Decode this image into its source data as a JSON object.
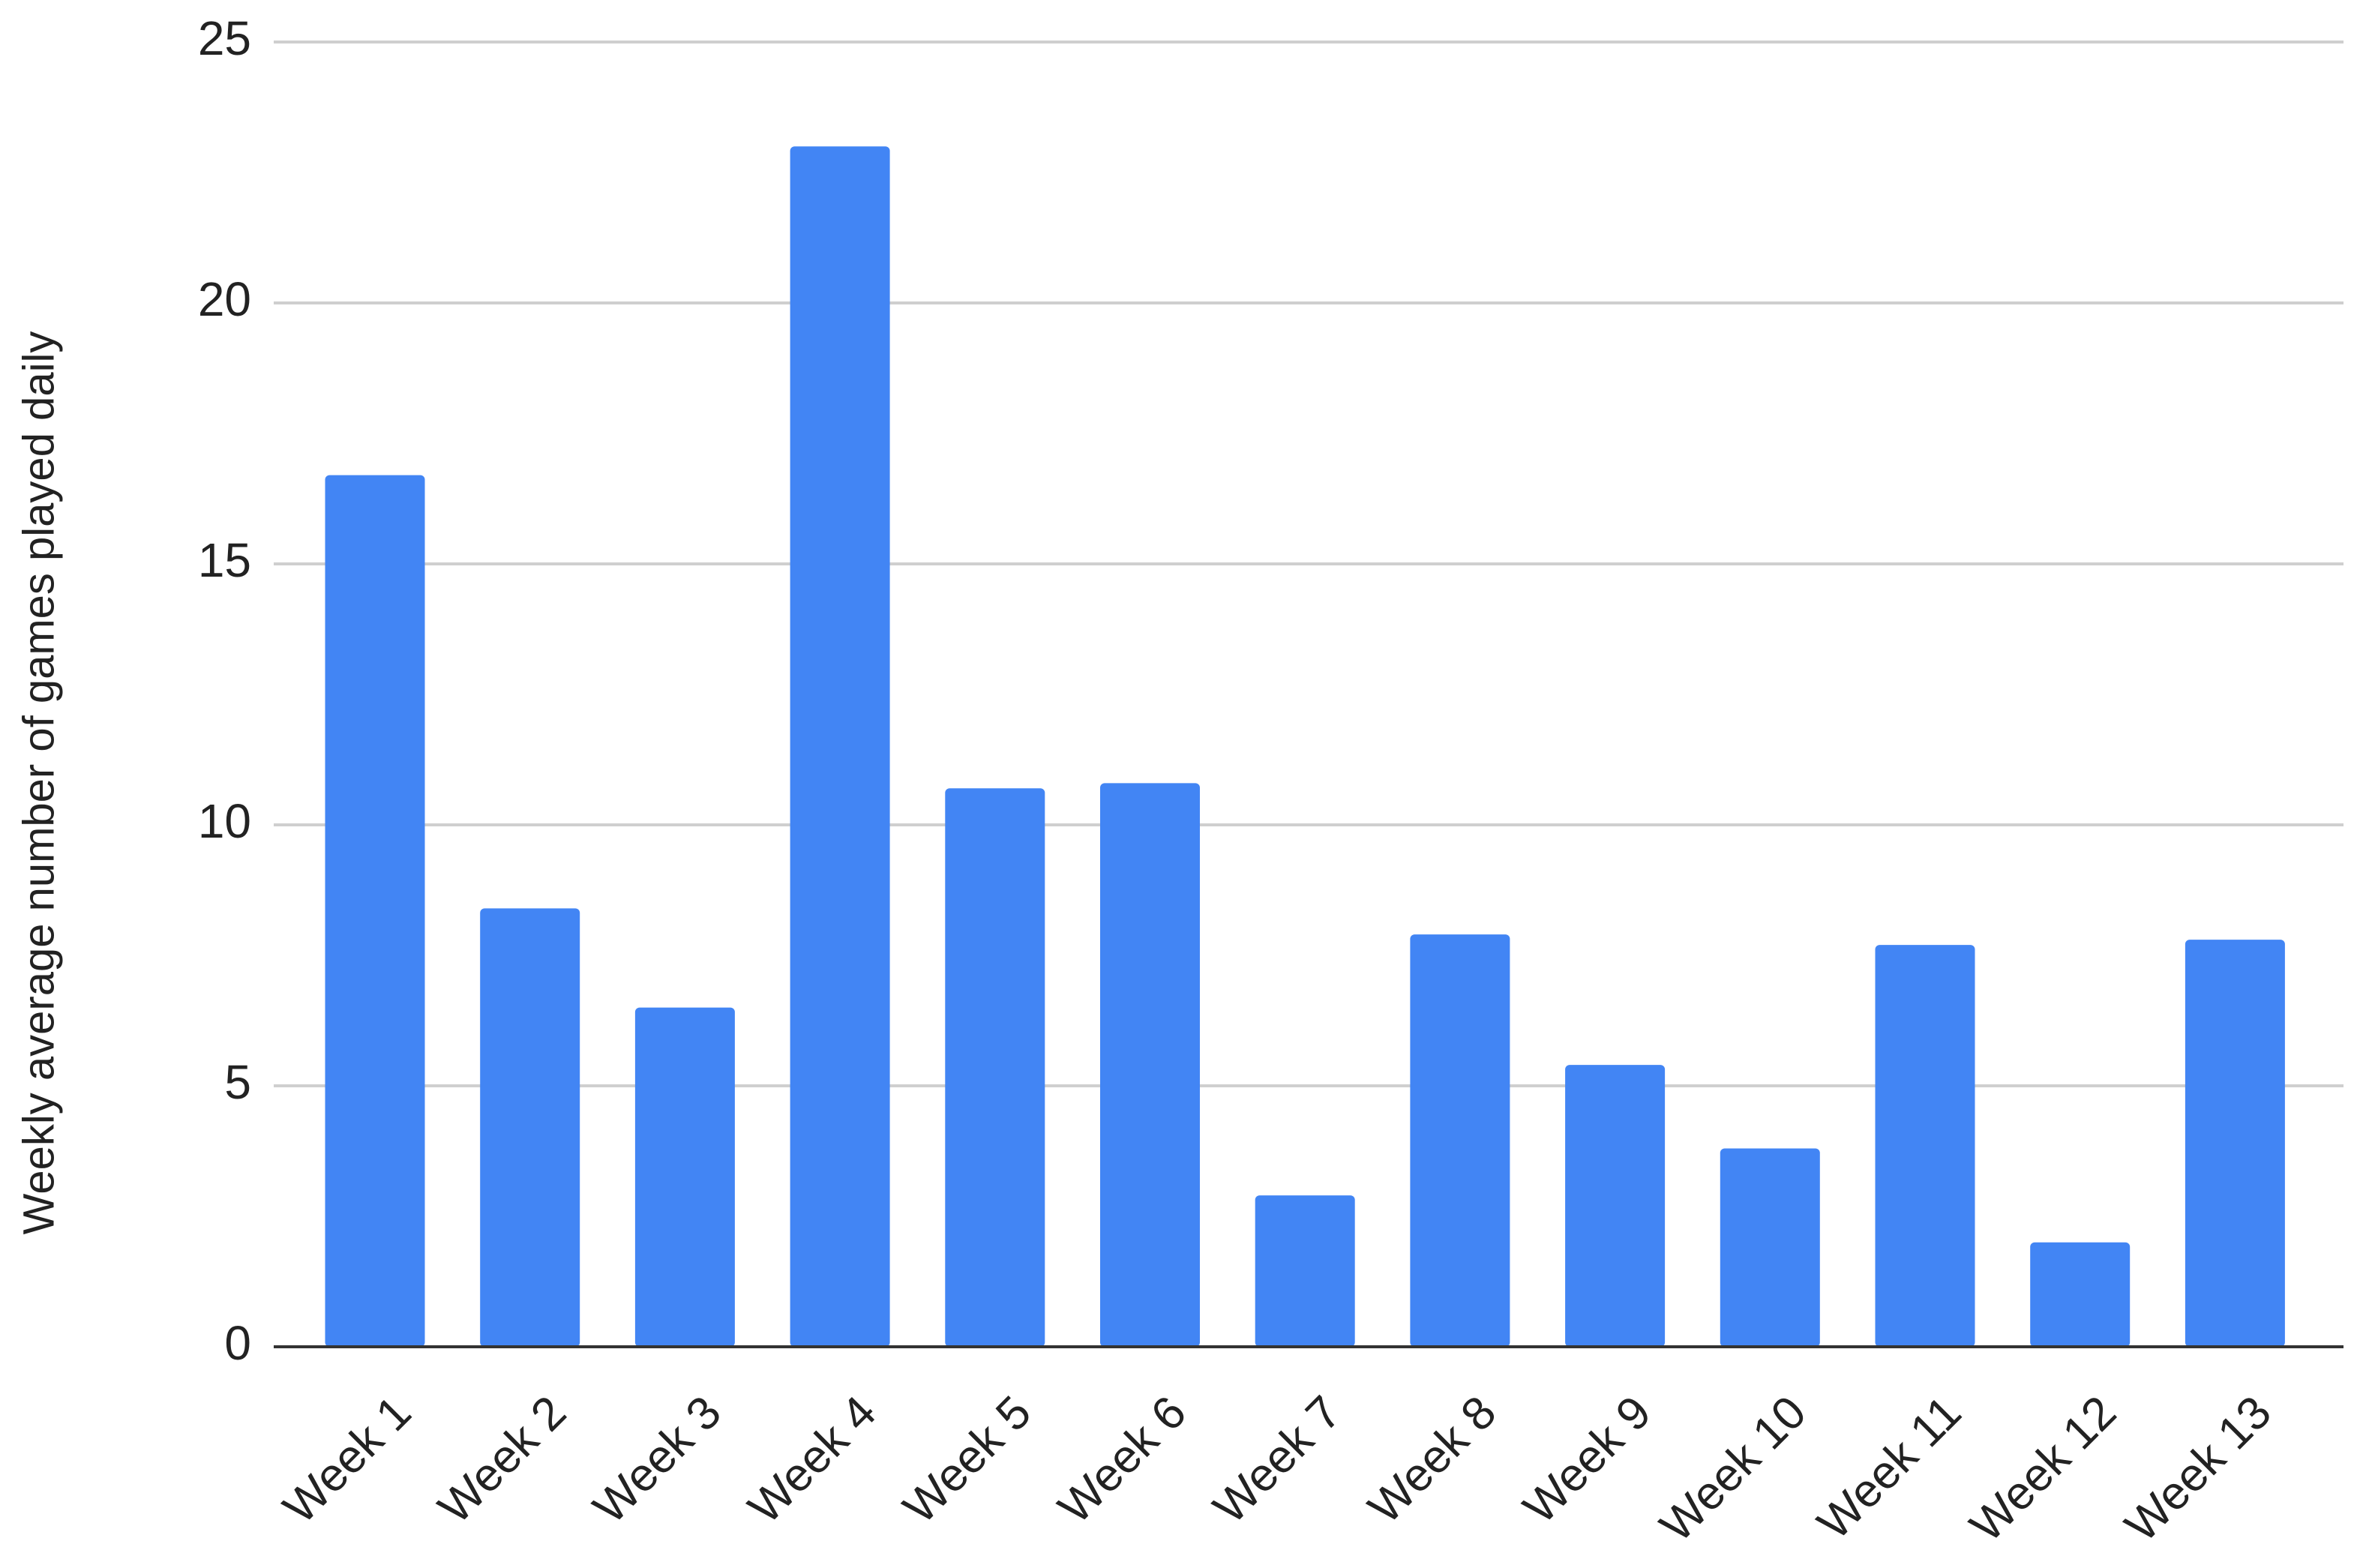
{
  "chart_data": {
    "type": "bar",
    "y_label": "Weekly average number of games played daily",
    "categories": [
      "Week 1",
      "Week 2",
      "Week 3",
      "Week 4",
      "Week 5",
      "Week 6",
      "Week 7",
      "Week 8",
      "Week 9",
      "Week 10",
      "Week 11",
      "Week 12",
      "Week 13"
    ],
    "values": [
      16.7,
      8.4,
      6.5,
      23,
      10.7,
      10.8,
      2.9,
      7.9,
      5.4,
      3.8,
      7.7,
      2.0,
      7.8
    ],
    "color": "#4285f4",
    "ylim": [
      0,
      25
    ],
    "yticks": [
      0,
      5,
      10,
      15,
      20,
      25
    ],
    "grid": true
  }
}
